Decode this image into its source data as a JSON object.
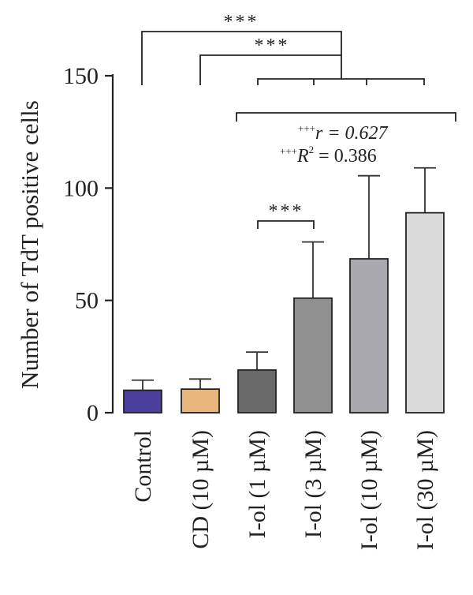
{
  "chart_data": {
    "type": "bar",
    "ylabel": "Number of TdT positive cells",
    "ylim": [
      0,
      150
    ],
    "yticks": [
      "0",
      "50",
      "100",
      "150"
    ],
    "categories": [
      "Control",
      "CD (10 µM)",
      "I-ol (1 µM)",
      "I-ol (3 µM)",
      "I-ol (10 µM)",
      "I-ol (30 µM)"
    ],
    "values": [
      10,
      10.5,
      19,
      51,
      68.5,
      89
    ],
    "errors": [
      4.5,
      4.5,
      8,
      25,
      37,
      20
    ],
    "colors": [
      "#4a3f9c",
      "#e8b57d",
      "#6a6a6a",
      "#909090",
      "#a8a8ae",
      "#dadada"
    ],
    "significance": {
      "control_bracket": "***",
      "cd_bracket": "***",
      "pair_1_3": "***",
      "trend_r_prefix": "+++",
      "trend_r": "r = 0.627",
      "trend_r2_prefix": "+++",
      "trend_r2": "R",
      "trend_r2_exp": "2",
      "trend_r2_value": " = 0.386"
    }
  }
}
